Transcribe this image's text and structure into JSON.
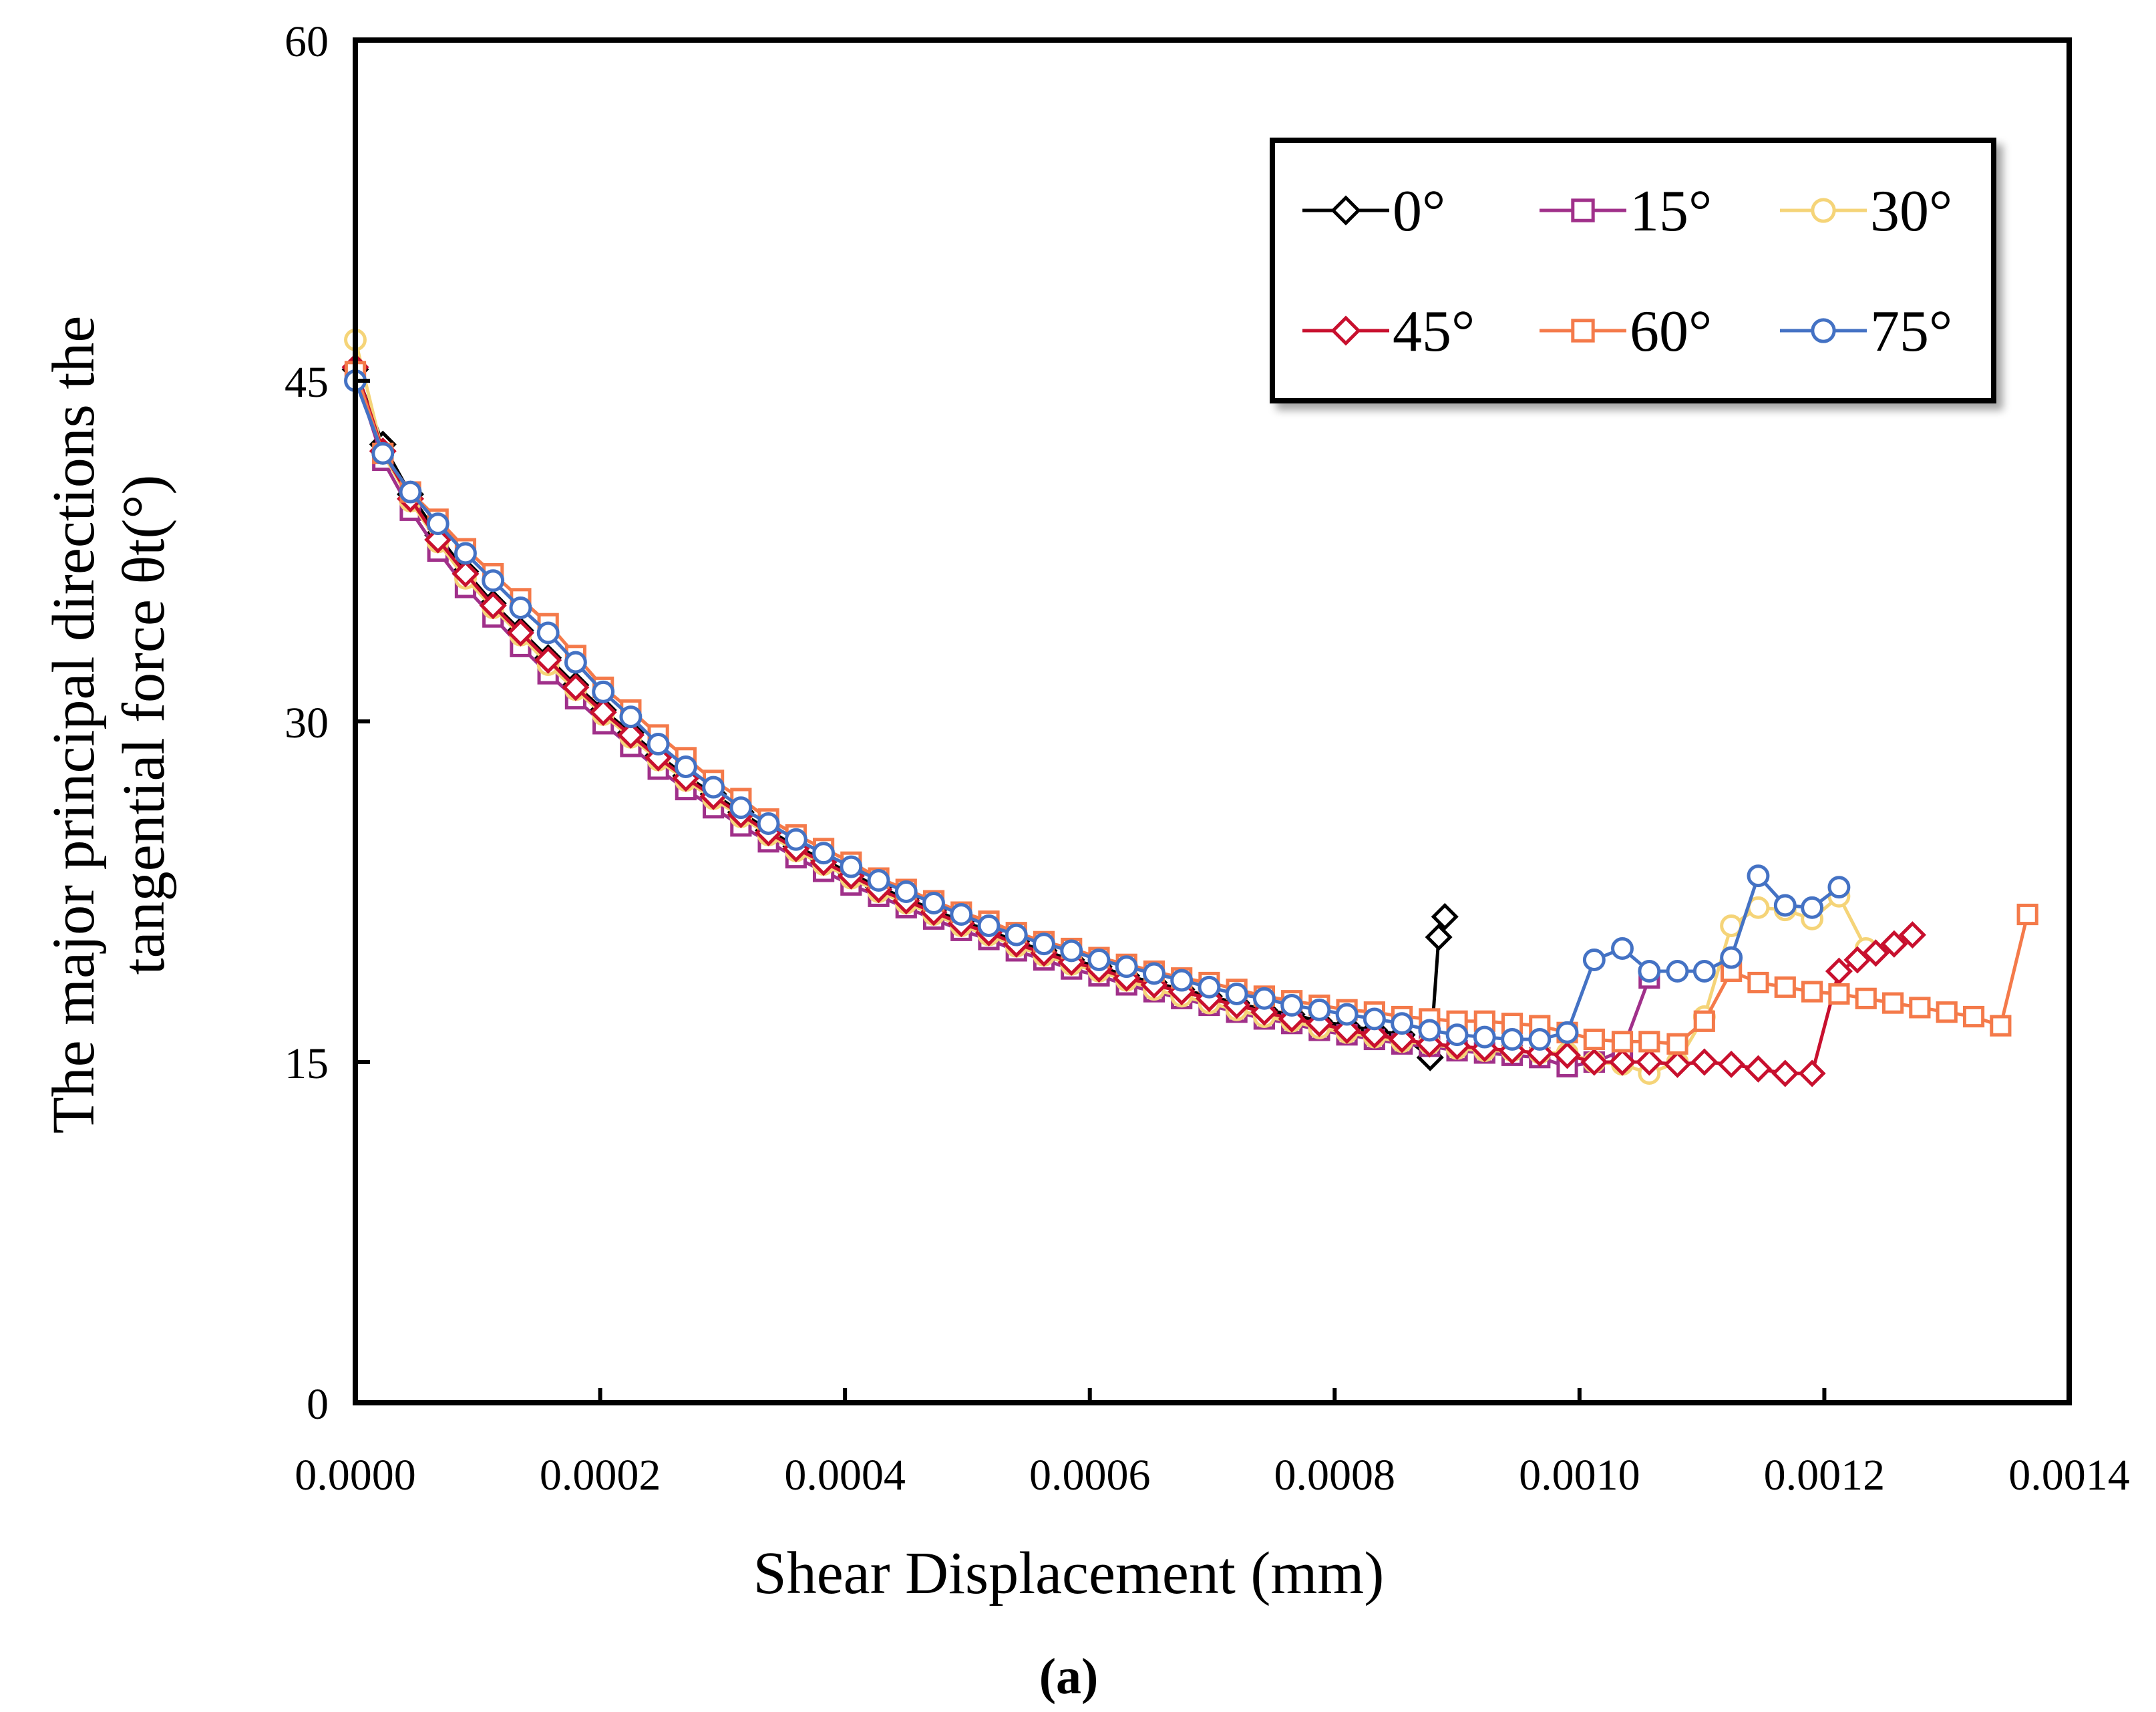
{
  "chart_data": {
    "type": "line",
    "title": "",
    "xlabel": "Shear Displacement (mm)",
    "ylabel_line1": "The major principal directions the",
    "ylabel_line2": "tangential force θt(°)",
    "caption": "(a)",
    "xlim": [
      0,
      0.0014
    ],
    "ylim": [
      0,
      60
    ],
    "x_ticks": [
      0,
      0.0002,
      0.0004,
      0.0006,
      0.0008,
      0.001,
      0.0012,
      0.0014
    ],
    "x_tick_labels": [
      "0.0000",
      "0.0002",
      "0.0004",
      "0.0006",
      "0.0008",
      "0.0010",
      "0.0012",
      "0.0014"
    ],
    "y_ticks": [
      0,
      15,
      30,
      45,
      60
    ],
    "y_tick_labels": [
      "0",
      "15",
      "30",
      "45",
      "60"
    ],
    "grid": false,
    "legend_position": "top-right",
    "series": [
      {
        "name": "0°",
        "color": "#000000",
        "marker": "diamond",
        "x": [
          0,
          2.25e-05,
          4.5e-05,
          6.75e-05,
          9e-05,
          0.0001125,
          0.000135,
          0.0001575,
          0.00018,
          0.0002025,
          0.000225,
          0.0002475,
          0.00027,
          0.0002925,
          0.000315,
          0.0003375,
          0.00036,
          0.0003825,
          0.000405,
          0.0004275,
          0.00045,
          0.0004725,
          0.000495,
          0.0005175,
          0.00054,
          0.0005625,
          0.000585,
          0.0006075,
          0.00063,
          0.0006525,
          0.000675,
          0.0006975,
          0.00072,
          0.0007425,
          0.000765,
          0.0007875,
          0.00081,
          0.0008325,
          0.000855,
          0.000878,
          0.000885,
          0.00089
        ],
        "y": [
          45.5,
          42.2,
          40.0,
          38.2,
          36.6,
          35.2,
          34.0,
          32.8,
          31.6,
          30.5,
          29.5,
          28.5,
          27.6,
          26.8,
          26.0,
          25.2,
          24.5,
          23.9,
          23.3,
          22.7,
          22.2,
          21.7,
          21.2,
          20.8,
          20.3,
          19.9,
          19.5,
          19.2,
          18.8,
          18.5,
          18.2,
          17.9,
          17.6,
          17.3,
          17.1,
          16.8,
          16.6,
          16.4,
          16.2,
          15.2,
          20.5,
          21.4
        ]
      },
      {
        "name": "15°",
        "color": "#A0308A",
        "marker": "square",
        "x": [
          0,
          2.25e-05,
          4.5e-05,
          6.75e-05,
          9e-05,
          0.0001125,
          0.000135,
          0.0001575,
          0.00018,
          0.0002025,
          0.000225,
          0.0002475,
          0.00027,
          0.0002925,
          0.000315,
          0.0003375,
          0.00036,
          0.0003825,
          0.000405,
          0.0004275,
          0.00045,
          0.0004725,
          0.000495,
          0.0005175,
          0.00054,
          0.0005625,
          0.000585,
          0.0006075,
          0.00063,
          0.0006525,
          0.000675,
          0.0006975,
          0.00072,
          0.0007425,
          0.000765,
          0.0007875,
          0.00081,
          0.0008325,
          0.000855,
          0.0008775,
          0.0009,
          0.0009225,
          0.000945,
          0.0009675,
          0.00099,
          0.001012,
          0.001035,
          0.001057
        ],
        "y": [
          45.3,
          41.5,
          39.3,
          37.5,
          35.9,
          34.6,
          33.3,
          32.1,
          31.0,
          29.9,
          28.9,
          27.9,
          27.0,
          26.2,
          25.4,
          24.7,
          24.0,
          23.4,
          22.8,
          22.3,
          21.8,
          21.3,
          20.8,
          20.4,
          19.9,
          19.5,
          19.1,
          18.8,
          18.4,
          18.1,
          17.8,
          17.5,
          17.2,
          16.9,
          16.7,
          16.4,
          16.2,
          16.0,
          15.8,
          15.7,
          15.5,
          15.4,
          15.3,
          15.2,
          14.8,
          15.0,
          15.5,
          18.7
        ]
      },
      {
        "name": "30°",
        "color": "#F5D478",
        "marker": "circle",
        "x": [
          0,
          2.25e-05,
          4.5e-05,
          6.75e-05,
          9e-05,
          0.0001125,
          0.000135,
          0.0001575,
          0.00018,
          0.0002025,
          0.000225,
          0.0002475,
          0.00027,
          0.0002925,
          0.000315,
          0.0003375,
          0.00036,
          0.0003825,
          0.000405,
          0.0004275,
          0.00045,
          0.0004725,
          0.000495,
          0.0005175,
          0.00054,
          0.0005625,
          0.000585,
          0.0006075,
          0.00063,
          0.0006525,
          0.000675,
          0.0006975,
          0.00072,
          0.0007425,
          0.000765,
          0.0007875,
          0.00081,
          0.0008325,
          0.000855,
          0.0008775,
          0.0009,
          0.0009225,
          0.000945,
          0.0009675,
          0.00099,
          0.001012,
          0.001035,
          0.001057,
          0.00108,
          0.001102,
          0.001124,
          0.001146,
          0.001168,
          0.00119,
          0.001212,
          0.001234
        ],
        "y": [
          46.8,
          41.8,
          39.7,
          37.9,
          36.3,
          35.0,
          33.8,
          32.5,
          31.4,
          30.3,
          29.3,
          28.3,
          27.4,
          26.6,
          25.8,
          25.0,
          24.3,
          23.7,
          23.1,
          22.5,
          22.0,
          21.5,
          21.0,
          20.6,
          20.1,
          19.7,
          19.3,
          19.0,
          18.6,
          18.2,
          17.9,
          17.6,
          17.3,
          17.0,
          16.8,
          16.5,
          16.3,
          16.1,
          15.9,
          15.8,
          15.6,
          15.5,
          15.5,
          15.4,
          15.4,
          15.0,
          14.9,
          14.5,
          15.0,
          17.0,
          21.0,
          21.8,
          21.7,
          21.3,
          22.3,
          20.0
        ]
      },
      {
        "name": "45°",
        "color": "#C8102E",
        "marker": "diamond",
        "x": [
          0,
          2.25e-05,
          4.5e-05,
          6.75e-05,
          9e-05,
          0.0001125,
          0.000135,
          0.0001575,
          0.00018,
          0.0002025,
          0.000225,
          0.0002475,
          0.00027,
          0.0002925,
          0.000315,
          0.0003375,
          0.00036,
          0.0003825,
          0.000405,
          0.0004275,
          0.00045,
          0.0004725,
          0.000495,
          0.0005175,
          0.00054,
          0.0005625,
          0.000585,
          0.0006075,
          0.00063,
          0.0006525,
          0.000675,
          0.0006975,
          0.00072,
          0.0007425,
          0.000765,
          0.0007875,
          0.00081,
          0.0008325,
          0.000855,
          0.0008775,
          0.0009,
          0.0009225,
          0.000945,
          0.0009675,
          0.00099,
          0.001012,
          0.001035,
          0.001057,
          0.00108,
          0.001102,
          0.001124,
          0.001146,
          0.001168,
          0.00119,
          0.001212,
          0.001227,
          0.001242,
          0.001257,
          0.001272
        ],
        "y": [
          45.6,
          41.9,
          39.8,
          38.0,
          36.5,
          35.1,
          33.9,
          32.7,
          31.5,
          30.4,
          29.4,
          28.4,
          27.5,
          26.7,
          25.9,
          25.1,
          24.4,
          23.8,
          23.2,
          22.6,
          22.1,
          21.6,
          21.1,
          20.7,
          20.2,
          19.8,
          19.4,
          19.1,
          18.7,
          18.4,
          18.1,
          17.8,
          17.5,
          17.2,
          16.9,
          16.7,
          16.4,
          16.2,
          16.0,
          15.8,
          15.7,
          15.6,
          15.5,
          15.4,
          15.3,
          15.0,
          15.0,
          15.0,
          14.9,
          15.0,
          14.9,
          14.7,
          14.5,
          14.5,
          19.0,
          19.5,
          19.8,
          20.2,
          20.6
        ]
      },
      {
        "name": "60°",
        "color": "#F47A4A",
        "marker": "square",
        "x": [
          0,
          2.25e-05,
          4.5e-05,
          6.75e-05,
          9e-05,
          0.0001125,
          0.000135,
          0.0001575,
          0.00018,
          0.0002025,
          0.000225,
          0.0002475,
          0.00027,
          0.0002925,
          0.000315,
          0.0003375,
          0.00036,
          0.0003825,
          0.000405,
          0.0004275,
          0.00045,
          0.0004725,
          0.000495,
          0.0005175,
          0.00054,
          0.0005625,
          0.000585,
          0.0006075,
          0.00063,
          0.0006525,
          0.000675,
          0.0006975,
          0.00072,
          0.0007425,
          0.000765,
          0.0007875,
          0.00081,
          0.0008325,
          0.000855,
          0.0008775,
          0.0009,
          0.0009225,
          0.000945,
          0.0009675,
          0.00099,
          0.001012,
          0.001035,
          0.001057,
          0.00108,
          0.001102,
          0.001124,
          0.001146,
          0.001168,
          0.00119,
          0.001212,
          0.001234,
          0.001256,
          0.001278,
          0.0013,
          0.001322,
          0.001344,
          0.001366
        ],
        "y": [
          45.4,
          41.8,
          40.1,
          38.9,
          37.6,
          36.5,
          35.4,
          34.3,
          32.9,
          31.5,
          30.5,
          29.4,
          28.4,
          27.4,
          26.6,
          25.7,
          25.0,
          24.4,
          23.8,
          23.1,
          22.6,
          22.1,
          21.6,
          21.2,
          20.7,
          20.3,
          20.0,
          19.6,
          19.3,
          19.0,
          18.7,
          18.5,
          18.2,
          17.9,
          17.7,
          17.5,
          17.3,
          17.2,
          17.0,
          16.9,
          16.8,
          16.8,
          16.7,
          16.6,
          16.3,
          16.0,
          15.9,
          15.9,
          15.8,
          16.8,
          19.0,
          18.5,
          18.3,
          18.1,
          18.0,
          17.8,
          17.6,
          17.4,
          17.2,
          17.0,
          16.6,
          21.5
        ]
      },
      {
        "name": "75°",
        "color": "#4472C4",
        "marker": "circle",
        "x": [
          0,
          2.25e-05,
          4.5e-05,
          6.75e-05,
          9e-05,
          0.0001125,
          0.000135,
          0.0001575,
          0.00018,
          0.0002025,
          0.000225,
          0.0002475,
          0.00027,
          0.0002925,
          0.000315,
          0.0003375,
          0.00036,
          0.0003825,
          0.000405,
          0.0004275,
          0.00045,
          0.0004725,
          0.000495,
          0.0005175,
          0.00054,
          0.0005625,
          0.000585,
          0.0006075,
          0.00063,
          0.0006525,
          0.000675,
          0.0006975,
          0.00072,
          0.0007425,
          0.000765,
          0.0007875,
          0.00081,
          0.0008325,
          0.000855,
          0.0008775,
          0.0009,
          0.0009225,
          0.000945,
          0.0009675,
          0.00099,
          0.001012,
          0.001035,
          0.001057,
          0.00108,
          0.001102,
          0.001124,
          0.001146,
          0.001168,
          0.00119,
          0.001212
        ],
        "y": [
          45.0,
          41.8,
          40.1,
          38.7,
          37.4,
          36.2,
          35.0,
          33.9,
          32.6,
          31.3,
          30.2,
          29.0,
          28.0,
          27.1,
          26.2,
          25.5,
          24.8,
          24.2,
          23.6,
          23.0,
          22.5,
          22.0,
          21.5,
          21.0,
          20.6,
          20.2,
          19.9,
          19.5,
          19.2,
          18.9,
          18.6,
          18.3,
          18.0,
          17.8,
          17.5,
          17.3,
          17.1,
          16.9,
          16.7,
          16.4,
          16.2,
          16.1,
          16.0,
          16.0,
          16.3,
          19.5,
          20.0,
          19.0,
          19.0,
          19.0,
          19.6,
          23.2,
          21.9,
          21.8,
          22.7
        ]
      }
    ]
  }
}
